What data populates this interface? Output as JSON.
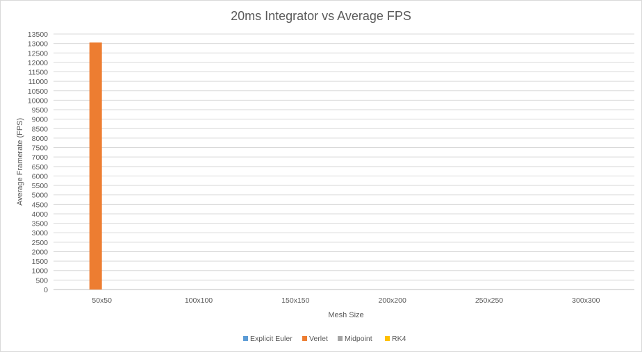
{
  "chart_data": {
    "type": "bar",
    "title": "20ms Integrator vs Average FPS",
    "xlabel": "Mesh Size",
    "ylabel": "Average Framerate  (FPS)",
    "categories": [
      "50x50",
      "100x100",
      "150x150",
      "200x200",
      "250x250",
      "300x300"
    ],
    "ylim": [
      0,
      13500
    ],
    "yticks": [
      0,
      500,
      1000,
      1500,
      2000,
      2500,
      3000,
      3500,
      4000,
      4500,
      5000,
      5500,
      6000,
      6500,
      7000,
      7500,
      8000,
      8500,
      9000,
      9500,
      10000,
      10500,
      11000,
      11500,
      12000,
      12500,
      13000,
      13500
    ],
    "grid": true,
    "legend_position": "bottom",
    "series": [
      {
        "name": "Explicit Euler",
        "color": "#5b9bd5",
        "values": [
          0,
          0,
          0,
          0,
          0,
          0
        ]
      },
      {
        "name": "Verlet",
        "color": "#ed7d31",
        "values": [
          13050,
          0,
          0,
          0,
          0,
          0
        ]
      },
      {
        "name": "Midpoint",
        "color": "#a5a5a5",
        "values": [
          0,
          0,
          0,
          0,
          0,
          0
        ]
      },
      {
        "name": "RK4",
        "color": "#ffc000",
        "values": [
          0,
          0,
          0,
          0,
          0,
          0
        ]
      }
    ]
  }
}
